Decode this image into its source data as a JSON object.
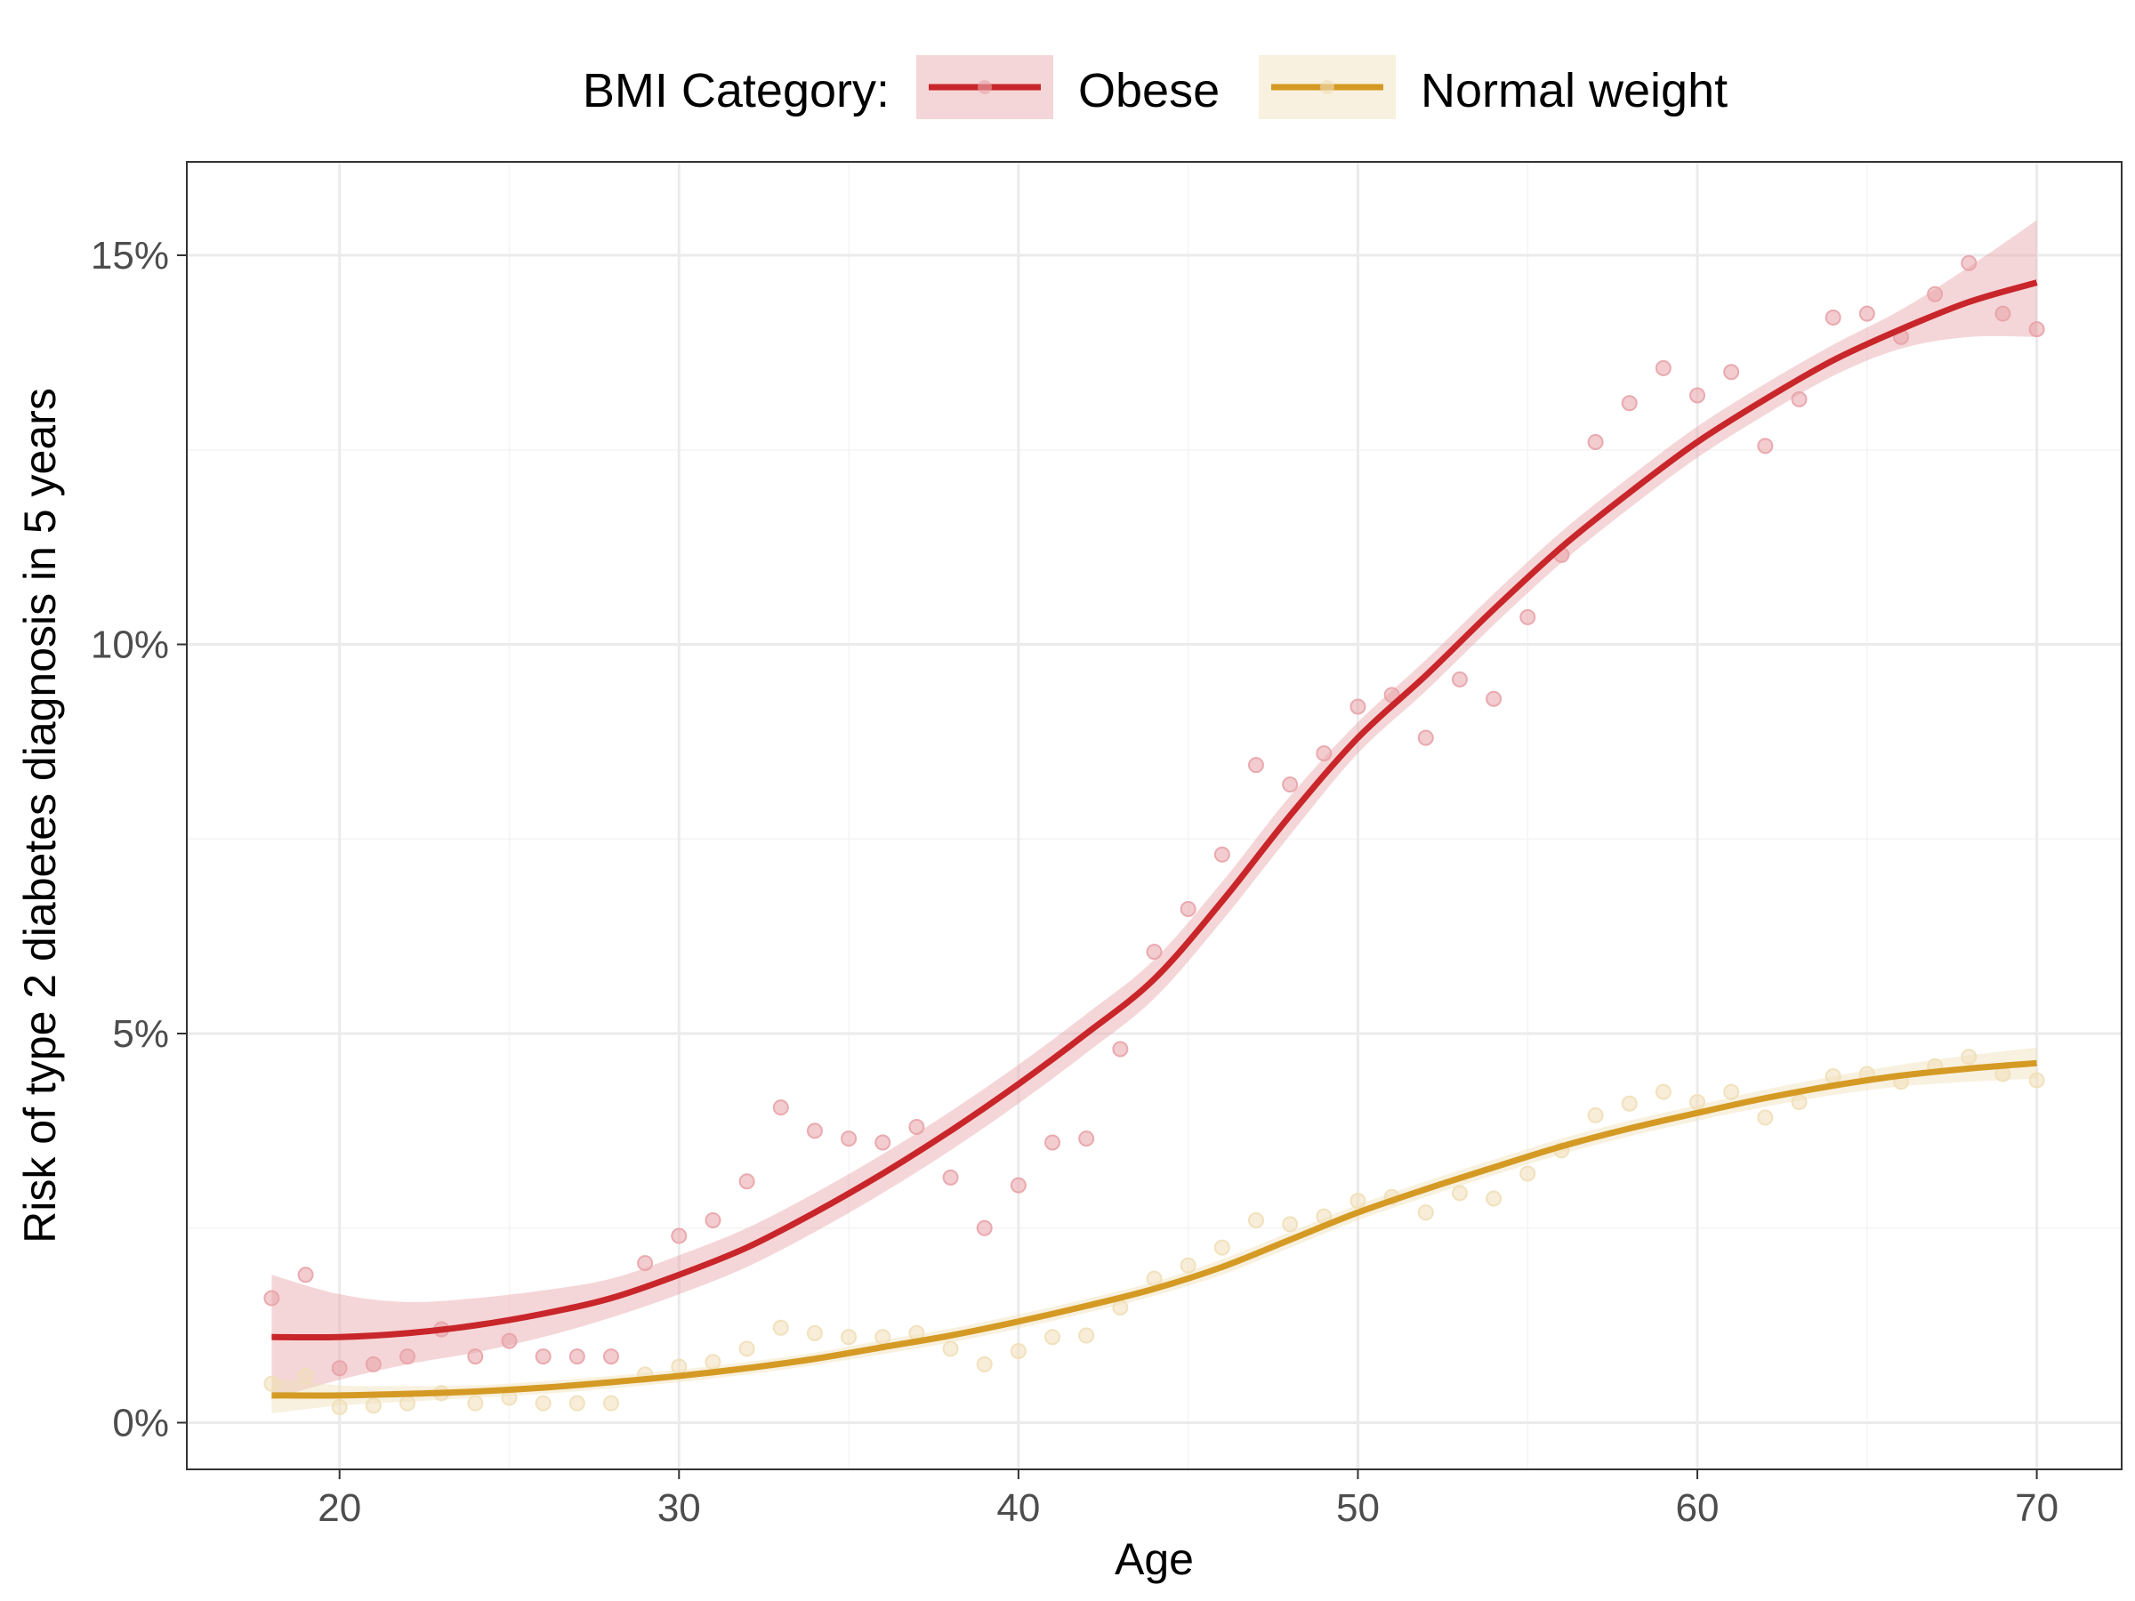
{
  "chart_data": {
    "type": "line",
    "xlabel": "Age",
    "ylabel": "Risk of type 2 diabetes diagnosis in 5 years",
    "xlim": [
      15.5,
      72.5
    ],
    "ylim": [
      -0.6,
      16.2
    ],
    "x_ticks": [
      20,
      30,
      40,
      50,
      60,
      70
    ],
    "x_tick_labels": [
      "20",
      "30",
      "40",
      "50",
      "60",
      "70"
    ],
    "y_ticks": [
      0,
      5,
      10,
      15
    ],
    "y_tick_labels": [
      "0%",
      "5%",
      "10%",
      "15%"
    ],
    "grid": true,
    "legend": {
      "title": "BMI Category:",
      "position": "top-center"
    },
    "series": [
      {
        "name": "Obese",
        "color": "#c8262a",
        "ribbon_color": "#e8a3a8",
        "point_color": "#e8a3a8",
        "fit": {
          "x": [
            18,
            20,
            22,
            24,
            26,
            28,
            30,
            32,
            34,
            36,
            38,
            40,
            42,
            44,
            46,
            48,
            50,
            52,
            54,
            56,
            58,
            60,
            62,
            64,
            66,
            68,
            70
          ],
          "y": [
            1.1,
            1.1,
            1.15,
            1.25,
            1.4,
            1.6,
            1.9,
            2.25,
            2.7,
            3.2,
            3.75,
            4.35,
            5.0,
            5.7,
            6.7,
            7.8,
            8.8,
            9.6,
            10.45,
            11.25,
            11.95,
            12.6,
            13.15,
            13.65,
            14.05,
            14.4,
            14.65
          ],
          "lower": [
            0.3,
            0.55,
            0.75,
            0.9,
            1.1,
            1.35,
            1.65,
            2.0,
            2.45,
            2.95,
            3.5,
            4.1,
            4.75,
            5.45,
            6.45,
            7.55,
            8.6,
            9.4,
            10.25,
            11.05,
            11.75,
            12.4,
            12.95,
            13.45,
            13.8,
            13.95,
            13.95
          ],
          "upper": [
            1.9,
            1.65,
            1.55,
            1.6,
            1.7,
            1.85,
            2.15,
            2.5,
            2.95,
            3.45,
            4.0,
            4.6,
            5.25,
            5.95,
            6.95,
            8.05,
            9.0,
            9.8,
            10.65,
            11.45,
            12.15,
            12.8,
            13.35,
            13.85,
            14.3,
            14.85,
            15.45
          ]
        },
        "points": {
          "x": [
            18,
            19,
            20,
            21,
            22,
            23,
            24,
            25,
            26,
            27,
            28,
            29,
            30,
            31,
            32,
            33,
            34,
            35,
            36,
            37,
            38,
            39,
            40,
            41,
            42,
            43,
            44,
            45,
            46,
            47,
            48,
            49,
            50,
            51,
            52,
            53,
            54,
            55,
            56,
            57,
            58,
            59,
            60,
            61,
            62,
            63,
            64,
            65,
            66,
            67,
            68,
            69,
            70
          ],
          "y": [
            1.6,
            1.9,
            0.7,
            0.75,
            0.85,
            1.2,
            0.85,
            1.05,
            0.85,
            0.85,
            0.85,
            2.05,
            2.4,
            2.6,
            3.1,
            4.05,
            3.75,
            3.65,
            3.6,
            3.8,
            3.15,
            2.5,
            3.05,
            3.6,
            3.65,
            4.8,
            6.05,
            6.6,
            7.3,
            8.45,
            8.2,
            8.6,
            9.2,
            9.35,
            8.8,
            9.55,
            9.3,
            10.35,
            11.15,
            12.6,
            13.1,
            13.55,
            13.2,
            13.5,
            12.55,
            13.15,
            14.2,
            14.25,
            13.95,
            14.5,
            14.9,
            14.25,
            14.05
          ]
        }
      },
      {
        "name": "Normal weight",
        "color": "#d49a24",
        "ribbon_color": "#f0dfb8",
        "point_color": "#f0dfb8",
        "fit": {
          "x": [
            18,
            20,
            22,
            24,
            26,
            28,
            30,
            32,
            34,
            36,
            38,
            40,
            42,
            44,
            46,
            48,
            50,
            52,
            54,
            56,
            58,
            60,
            62,
            64,
            66,
            68,
            70
          ],
          "y": [
            0.35,
            0.35,
            0.37,
            0.4,
            0.45,
            0.52,
            0.6,
            0.7,
            0.82,
            0.97,
            1.12,
            1.3,
            1.5,
            1.72,
            2.0,
            2.35,
            2.7,
            3.0,
            3.28,
            3.55,
            3.78,
            3.98,
            4.17,
            4.33,
            4.46,
            4.55,
            4.62
          ],
          "lower": [
            0.12,
            0.22,
            0.27,
            0.32,
            0.37,
            0.44,
            0.52,
            0.62,
            0.74,
            0.88,
            1.03,
            1.21,
            1.41,
            1.63,
            1.9,
            2.25,
            2.6,
            2.9,
            3.18,
            3.45,
            3.68,
            3.88,
            4.06,
            4.21,
            4.32,
            4.38,
            4.42
          ],
          "upper": [
            0.58,
            0.48,
            0.47,
            0.48,
            0.53,
            0.6,
            0.68,
            0.78,
            0.9,
            1.06,
            1.21,
            1.39,
            1.59,
            1.81,
            2.1,
            2.45,
            2.8,
            3.1,
            3.38,
            3.65,
            3.88,
            4.08,
            4.28,
            4.45,
            4.6,
            4.72,
            4.82
          ]
        },
        "points": {
          "x": [
            18,
            19,
            20,
            21,
            22,
            23,
            24,
            25,
            26,
            27,
            28,
            29,
            30,
            31,
            32,
            33,
            34,
            35,
            36,
            37,
            38,
            39,
            40,
            41,
            42,
            43,
            44,
            45,
            46,
            47,
            48,
            49,
            50,
            51,
            52,
            53,
            54,
            55,
            56,
            57,
            58,
            59,
            60,
            61,
            62,
            63,
            64,
            65,
            66,
            67,
            68,
            69,
            70
          ],
          "y": [
            0.5,
            0.6,
            0.2,
            0.22,
            0.25,
            0.38,
            0.25,
            0.32,
            0.25,
            0.25,
            0.25,
            0.62,
            0.72,
            0.78,
            0.95,
            1.22,
            1.15,
            1.1,
            1.1,
            1.15,
            0.95,
            0.75,
            0.92,
            1.1,
            1.12,
            1.48,
            1.85,
            2.02,
            2.25,
            2.6,
            2.55,
            2.65,
            2.85,
            2.9,
            2.7,
            2.95,
            2.88,
            3.2,
            3.5,
            3.95,
            4.1,
            4.25,
            4.12,
            4.25,
            3.92,
            4.12,
            4.45,
            4.48,
            4.38,
            4.58,
            4.7,
            4.48,
            4.4
          ]
        }
      }
    ]
  }
}
